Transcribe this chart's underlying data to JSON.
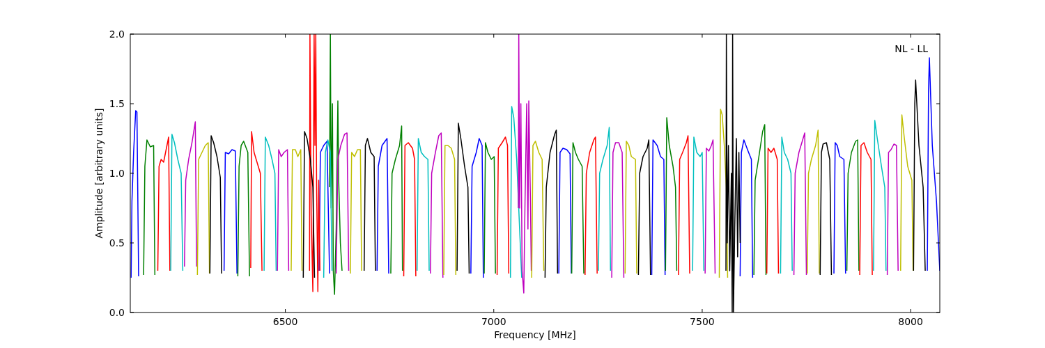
{
  "chart_data": {
    "type": "line",
    "xlabel": "Frequency [MHz]",
    "ylabel": "Amplitude [arbitrary units]",
    "annotations": [
      "NL - LL"
    ],
    "xlim": [
      6128,
      8070
    ],
    "ylim": [
      0,
      2
    ],
    "xticks": [
      6500,
      7000,
      7500,
      8000
    ],
    "yticks": [
      {
        "value": 0,
        "label": "0.0"
      },
      {
        "value": 0.5,
        "label": "0.5"
      },
      {
        "value": 1,
        "label": "1.0"
      },
      {
        "value": 1.5,
        "label": "1.5"
      },
      {
        "value": 2,
        "label": "2.0"
      }
    ],
    "grid": false,
    "marker": "none",
    "line_style": "solid",
    "series": [
      {
        "color": "#0000ff",
        "x": [
          6130,
          6132,
          6136,
          6141,
          6144,
          6148,
          null,
          6353,
          6356,
          6364,
          6372,
          6380,
          6384,
          null,
          6581,
          6584,
          6592,
          6600,
          6606,
          null,
          6720,
          6723,
          6732,
          6744,
          6748,
          null,
          6945,
          6948,
          6958,
          6965,
          6972,
          6975,
          null,
          7156,
          7159,
          7166,
          7175,
          7183,
          7186,
          null,
          7379,
          7382,
          7392,
          7400,
          7408,
          7411,
          null,
          7591,
          7594,
          7600,
          7610,
          7618,
          7621,
          null,
          7816,
          7819,
          7824,
          7830,
          7840,
          7844,
          null,
          8040,
          8043,
          8045,
          8052,
          8062,
          8070
        ],
        "values": [
          0.25,
          0.8,
          1.15,
          1.45,
          1.44,
          0.26,
          null,
          0.3,
          1.15,
          1.14,
          1.17,
          1.16,
          0.28,
          null,
          0.3,
          1.15,
          1.2,
          1.23,
          0.28,
          null,
          0.3,
          1.05,
          1.2,
          1.25,
          0.28,
          null,
          0.28,
          1.05,
          1.15,
          1.25,
          1.2,
          0.25,
          null,
          0.28,
          1.15,
          1.18,
          1.17,
          1.14,
          0.28,
          null,
          0.27,
          1.24,
          1.2,
          1.12,
          1.1,
          0.27,
          null,
          0.26,
          1.15,
          1.24,
          1.16,
          1.1,
          0.25,
          null,
          0.28,
          1.22,
          1.2,
          1.12,
          1.1,
          0.28,
          null,
          0.3,
          1.6,
          1.83,
          1.2,
          0.8,
          0.3
        ]
      },
      {
        "color": "#008000",
        "x": [
          6160,
          6163,
          6168,
          6176,
          6184,
          6187,
          null,
          6386,
          6389,
          6394,
          6400,
          6410,
          6414,
          null,
          6606,
          6608,
          6610,
          6613,
          6615,
          6618,
          6622,
          6626,
          6628,
          6632,
          6636,
          null,
          6753,
          6756,
          6764,
          6774,
          6779,
          6781,
          null,
          6977,
          6980,
          6986,
          6994,
          7001,
          7004,
          null,
          7187,
          7190,
          7196,
          7203,
          7212,
          7216,
          null,
          7412,
          7415,
          7421,
          7430,
          7436,
          7439,
          null,
          7624,
          7627,
          7635,
          7645,
          7650,
          7653,
          null,
          7847,
          7850,
          7858,
          7868,
          7873,
          7876
        ],
        "values": [
          0.27,
          1.05,
          1.24,
          1.19,
          1.2,
          0.27,
          null,
          0.26,
          1.05,
          1.2,
          1.23,
          1.15,
          0.26,
          null,
          0.9,
          2,
          0.75,
          1.5,
          0.3,
          0.13,
          0.6,
          1.52,
          0.95,
          0.5,
          0.3,
          null,
          0.28,
          1,
          1.1,
          1.2,
          1.34,
          0.3,
          null,
          0.28,
          1.22,
          1.15,
          1.1,
          1.12,
          0.28,
          null,
          0.28,
          1.22,
          1.15,
          1.1,
          1.05,
          0.28,
          null,
          0.3,
          1.4,
          1.2,
          1.05,
          0.9,
          0.3,
          null,
          0.27,
          0.95,
          1.1,
          1.3,
          1.35,
          0.27,
          null,
          0.3,
          1,
          1.15,
          1.23,
          1.24,
          0.3
        ]
      },
      {
        "color": "#ff0000",
        "x": [
          6194,
          6197,
          6202,
          6208,
          6214,
          6220,
          6223,
          null,
          6417,
          6419,
          6425,
          6433,
          6440,
          6444,
          null,
          6558,
          6559,
          6562,
          6566,
          6569,
          6571,
          6573,
          6575,
          6578,
          6580,
          6583,
          null,
          6784,
          6787,
          6795,
          6805,
          6810,
          6813,
          null,
          7008,
          7011,
          7020,
          7028,
          7033,
          7036,
          null,
          7219,
          7222,
          7230,
          7240,
          7244,
          7248,
          null,
          7443,
          7446,
          7453,
          7462,
          7466,
          7470,
          null,
          7655,
          7658,
          7665,
          7672,
          7680,
          7683,
          null,
          7878,
          7881,
          7888,
          7896,
          7905,
          7908
        ],
        "values": [
          0.3,
          1.05,
          1.1,
          1.08,
          1.17,
          1.26,
          0.3,
          null,
          0.32,
          1.3,
          1.15,
          1.07,
          1,
          0.3,
          null,
          0.3,
          2,
          0.7,
          0.15,
          2,
          1.2,
          2,
          0.9,
          0.15,
          0.95,
          0.3,
          null,
          0.26,
          1.2,
          1.22,
          1.18,
          1.1,
          0.26,
          null,
          0.27,
          1.18,
          1.22,
          1.26,
          1.2,
          0.28,
          null,
          0.27,
          1,
          1.15,
          1.24,
          1.26,
          0.28,
          null,
          0.27,
          1.1,
          1.15,
          1.22,
          1.27,
          0.28,
          null,
          0.28,
          1.18,
          1.15,
          1.18,
          1.1,
          0.28,
          null,
          0.27,
          1.2,
          1.22,
          1.15,
          1.1,
          0.27
        ]
      },
      {
        "color": "#00bfbf",
        "x": [
          6225,
          6228,
          6234,
          6242,
          6250,
          6254,
          null,
          6449,
          6452,
          6460,
          6468,
          6475,
          6478,
          null,
          6592,
          6596,
          6602,
          6608,
          6612,
          null,
          6816,
          6819,
          6826,
          6834,
          6842,
          6845,
          null,
          7040,
          7043,
          7048,
          7055,
          7062,
          7067,
          null,
          7251,
          7254,
          7262,
          7272,
          7277,
          7280,
          null,
          7477,
          7480,
          7487,
          7495,
          7500,
          7504,
          null,
          7688,
          7691,
          7697,
          7705,
          7713,
          7716,
          null,
          7911,
          7914,
          7920,
          7930,
          7938,
          7941
        ],
        "values": [
          0.3,
          1.28,
          1.22,
          1.1,
          1,
          0.3,
          null,
          0.3,
          1.26,
          1.2,
          1.1,
          1,
          0.3,
          null,
          0.25,
          1.15,
          1.24,
          1.15,
          0.3,
          null,
          0.3,
          1.25,
          1.15,
          1.12,
          1.1,
          0.3,
          null,
          0.25,
          1.48,
          1.4,
          1.1,
          0.6,
          0.25,
          null,
          0.3,
          1,
          1.1,
          1.2,
          1.33,
          0.3,
          null,
          0.3,
          1.26,
          1.15,
          1.12,
          1.15,
          0.3,
          null,
          0.28,
          1.26,
          1.15,
          1.1,
          1,
          0.3,
          null,
          0.3,
          1.38,
          1.25,
          1.05,
          0.9,
          0.3
        ]
      },
      {
        "color": "#bf00bf",
        "x": [
          6258,
          6261,
          6268,
          6276,
          6284,
          6287,
          null,
          6481,
          6484,
          6490,
          6497,
          6505,
          6508,
          null,
          6622,
          6626,
          6633,
          6642,
          6648,
          6652,
          null,
          6848,
          6851,
          6860,
          6868,
          6874,
          6878,
          null,
          7059,
          7060,
          7062,
          7065,
          7068,
          7072,
          7075,
          7079,
          7082,
          7084,
          7088,
          7090,
          null,
          7283,
          7286,
          7292,
          7300,
          7308,
          7312,
          null,
          7507,
          7510,
          7516,
          7522,
          7526,
          7531,
          null,
          7720,
          7723,
          7732,
          7742,
          7746,
          7750,
          null,
          7944,
          7947,
          7953,
          7960,
          7966,
          7970
        ],
        "values": [
          0.33,
          0.95,
          1.1,
          1.22,
          1.37,
          0.33,
          null,
          0.3,
          1.17,
          1.12,
          1.15,
          1.17,
          0.3,
          null,
          0.28,
          1.1,
          1.2,
          1.28,
          1.29,
          0.3,
          null,
          0.28,
          1,
          1.15,
          1.27,
          1.29,
          0.25,
          null,
          0.75,
          2,
          0.75,
          1.5,
          0.3,
          0.14,
          0.8,
          1.5,
          0.6,
          1.52,
          0.8,
          0.3,
          null,
          0.25,
          1.15,
          1.22,
          1.22,
          1.15,
          0.25,
          null,
          0.28,
          1.18,
          1.16,
          1.2,
          1.24,
          0.28,
          null,
          0.27,
          1,
          1.15,
          1.25,
          1.29,
          0.27,
          null,
          0.27,
          1.15,
          1.17,
          1.21,
          1.2,
          0.3
        ]
      },
      {
        "color": "#bfbf00",
        "x": [
          6289,
          6292,
          6300,
          6308,
          6315,
          6318,
          null,
          6514,
          6517,
          6524,
          6530,
          6537,
          6540,
          null,
          6656,
          6659,
          6666,
          6673,
          6680,
          6683,
          null,
          6880,
          6883,
          6890,
          6898,
          6906,
          6909,
          null,
          7091,
          7094,
          7100,
          7108,
          7116,
          7120,
          null,
          7315,
          7318,
          7324,
          7330,
          7340,
          7343,
          null,
          7541,
          7544,
          7548,
          7553,
          7558,
          7561,
          null,
          7752,
          7755,
          7762,
          7772,
          7778,
          7781,
          null,
          7976,
          7979,
          7985,
          7993,
          8003,
          8006
        ],
        "values": [
          0.27,
          1.1,
          1.15,
          1.2,
          1.22,
          0.28,
          null,
          0.3,
          1.17,
          1.17,
          1.12,
          1.17,
          0.3,
          null,
          0.28,
          1.15,
          1.12,
          1.17,
          1.17,
          0.3,
          null,
          0.27,
          1.2,
          1.2,
          1.18,
          1.1,
          0.27,
          null,
          0.25,
          1.2,
          1.23,
          1.15,
          1.1,
          0.3,
          null,
          0.28,
          1.23,
          1.2,
          1.12,
          1.1,
          0.28,
          null,
          0.25,
          1.46,
          1.42,
          1.2,
          0.9,
          0.25,
          null,
          0.28,
          1,
          1.1,
          1.2,
          1.31,
          0.28,
          null,
          0.3,
          1.42,
          1.25,
          1.05,
          0.95,
          0.3
        ]
      },
      {
        "color": "#000000",
        "x": [
          6319,
          6322,
          6328,
          6336,
          6344,
          6347,
          null,
          6543,
          6546,
          6552,
          6560,
          6566,
          6570,
          null,
          6689,
          6692,
          6697,
          6705,
          6713,
          6716,
          null,
          6912,
          6915,
          6921,
          6930,
          6938,
          6941,
          null,
          7123,
          7126,
          7135,
          7146,
          7150,
          7153,
          null,
          7347,
          7350,
          7358,
          7368,
          7372,
          7376,
          null,
          7557,
          7558,
          7560,
          7563,
          7566,
          7570,
          7572,
          7573,
          7575,
          7578,
          7582,
          7585,
          7588,
          7591,
          null,
          7783,
          7786,
          7790,
          7798,
          7806,
          7810,
          null,
          8007,
          8010,
          8012,
          8020,
          8030,
          8035
        ],
        "values": [
          0.28,
          1.27,
          1.22,
          1.12,
          0.97,
          0.28,
          null,
          0.25,
          1.3,
          1.25,
          1.1,
          0.9,
          0.25,
          null,
          0.3,
          1.2,
          1.25,
          1.15,
          1.12,
          0.3,
          null,
          0.3,
          1.36,
          1.25,
          1.05,
          0.9,
          0.28,
          null,
          0.25,
          0.9,
          1.15,
          1.28,
          1.31,
          0.28,
          null,
          0.27,
          1,
          1.12,
          1.18,
          1.24,
          0.27,
          null,
          0.3,
          2,
          0.5,
          1.2,
          0.3,
          1,
          0,
          2,
          0,
          0.6,
          1.25,
          0.4,
          1.15,
          0.5,
          null,
          0.27,
          1.15,
          1.21,
          1.22,
          1.1,
          0.27,
          null,
          0.3,
          1.5,
          1.67,
          1.2,
          0.9,
          0.3
        ]
      }
    ]
  }
}
